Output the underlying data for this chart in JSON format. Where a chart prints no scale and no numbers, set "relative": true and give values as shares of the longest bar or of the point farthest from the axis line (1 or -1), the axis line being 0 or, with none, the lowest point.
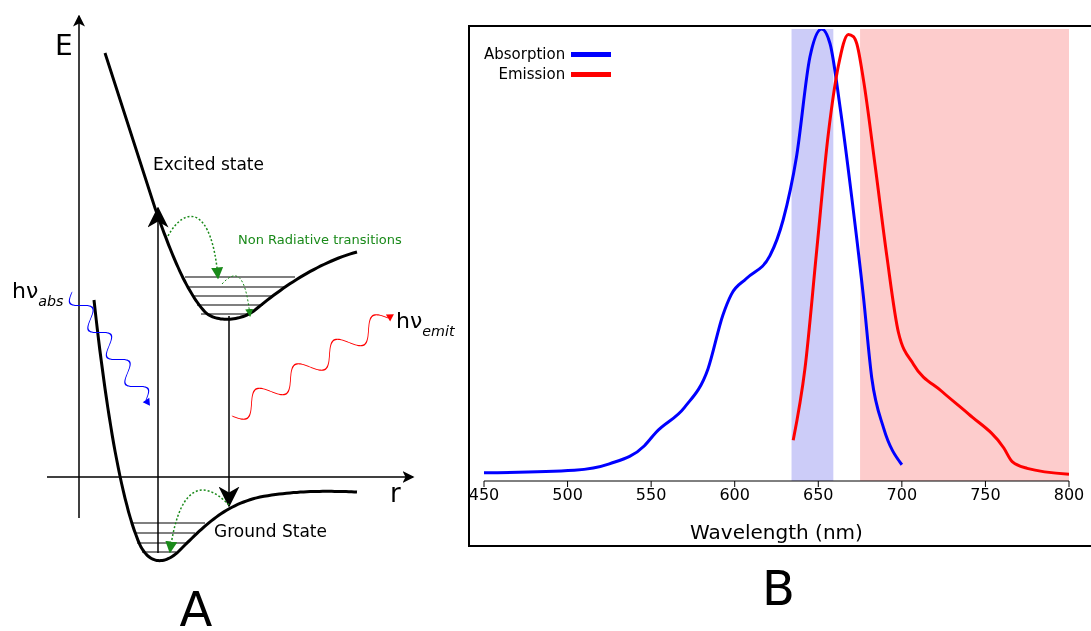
{
  "chart_data": [
    {
      "type": "other",
      "title": "A",
      "annotations": [
        "E",
        "r",
        "Excited state",
        "Non Radiative transitions",
        "hν$_{abs}$",
        "hν$_{emit}$",
        "Ground State"
      ]
    },
    {
      "type": "line",
      "title": "B",
      "xlabel": "Wavelength (nm)",
      "relative": true,
      "xlim": [
        450,
        800
      ],
      "xticks": [
        450,
        500,
        550,
        600,
        650,
        700,
        750,
        800
      ],
      "legend": "top left",
      "bands": [
        {
          "axis": "x",
          "from": 634,
          "to": 659,
          "color": "#ccccf8"
        },
        {
          "axis": "x",
          "from": 675,
          "to": 800,
          "color": "#fdcccc"
        }
      ],
      "series": [
        {
          "name": "Absorption",
          "color": "#0000ff",
          "x": [
            450,
            504,
            525,
            546,
            553,
            570,
            584,
            593,
            598,
            607,
            621,
            629,
            637,
            645,
            652,
            657,
            663,
            670,
            677,
            682,
            689,
            700
          ],
          "values": [
            0.018,
            0.024,
            0.038,
            0.078,
            0.108,
            0.163,
            0.248,
            0.368,
            0.413,
            0.448,
            0.498,
            0.578,
            0.718,
            0.938,
            1.0,
            0.968,
            0.828,
            0.628,
            0.408,
            0.228,
            0.118,
            0.036
          ]
        },
        {
          "name": "Emission",
          "color": "#ff0000",
          "x": [
            635,
            642,
            649,
            656,
            662,
            668,
            671,
            673,
            677,
            684,
            691,
            698,
            707,
            724,
            740,
            761,
            766,
            775,
            800
          ],
          "values": [
            0.09,
            0.248,
            0.508,
            0.768,
            0.918,
            0.988,
            0.983,
            0.968,
            0.888,
            0.698,
            0.498,
            0.328,
            0.258,
            0.198,
            0.148,
            0.073,
            0.043,
            0.028,
            0.015
          ]
        }
      ]
    }
  ]
}
